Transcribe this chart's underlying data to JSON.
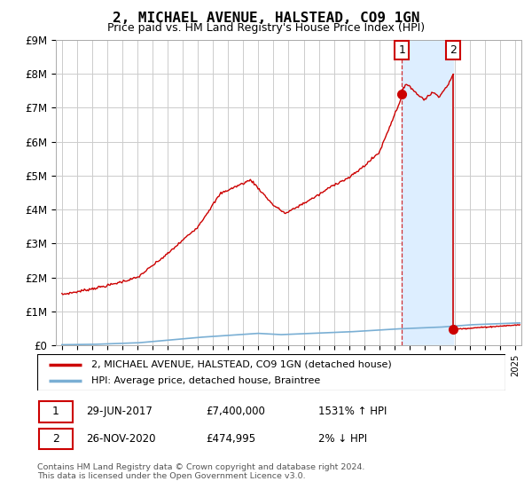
{
  "title": "2, MICHAEL AVENUE, HALSTEAD, CO9 1GN",
  "subtitle": "Price paid vs. HM Land Registry's House Price Index (HPI)",
  "ylim": [
    0,
    9000000
  ],
  "yticks": [
    0,
    1000000,
    2000000,
    3000000,
    4000000,
    5000000,
    6000000,
    7000000,
    8000000,
    9000000
  ],
  "ytick_labels": [
    "£0",
    "£1M",
    "£2M",
    "£3M",
    "£4M",
    "£5M",
    "£6M",
    "£7M",
    "£8M",
    "£9M"
  ],
  "xlim_left": 1994.6,
  "xlim_right": 2025.4,
  "background_color": "#ffffff",
  "grid_color": "#cccccc",
  "transaction1_year": 2017.5,
  "transaction1_price": 7400000,
  "transaction2_year": 2020.9,
  "transaction2_price": 474995,
  "red_line_color": "#cc0000",
  "blue_line_color": "#7aafd4",
  "shade_color": "#ddeeff",
  "marker_box_color": "#cc0000",
  "legend_red_label": "2, MICHAEL AVENUE, HALSTEAD, CO9 1GN (detached house)",
  "legend_blue_label": "HPI: Average price, detached house, Braintree",
  "t1_date_str": "29-JUN-2017",
  "t1_price_str": "£7,400,000",
  "t1_hpi_str": "1531% ↑ HPI",
  "t2_date_str": "26-NOV-2020",
  "t2_price_str": "£474,995",
  "t2_hpi_str": "2% ↓ HPI",
  "footer": "Contains HM Land Registry data © Crown copyright and database right 2024.\nThis data is licensed under the Open Government Licence v3.0."
}
